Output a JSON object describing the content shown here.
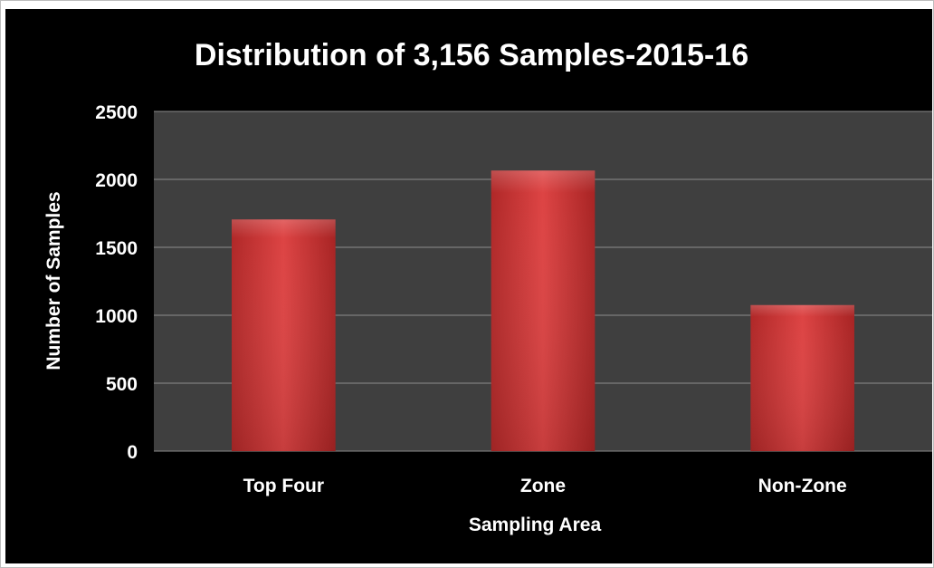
{
  "chart_data": {
    "type": "bar",
    "title": "Distribution of 3,156 Samples-2015-16",
    "xlabel": "Sampling Area",
    "ylabel": "Number of Samples",
    "categories": [
      "Top Four",
      "Zone",
      "Non-Zone"
    ],
    "values": [
      1705,
      2065,
      1075
    ],
    "ylim": [
      0,
      2500
    ],
    "yticks": [
      0,
      500,
      1000,
      1500,
      2000,
      2500
    ],
    "ytick_labels": [
      "0",
      "500",
      "1000",
      "1500",
      "2000",
      "2500"
    ],
    "grid": true,
    "legend": "none",
    "colors": {
      "background": "#000000",
      "plot_area": "#3f3f3f",
      "bar": "#d63a3a",
      "gridline": "#8c8c8c",
      "text": "#ffffff"
    }
  }
}
